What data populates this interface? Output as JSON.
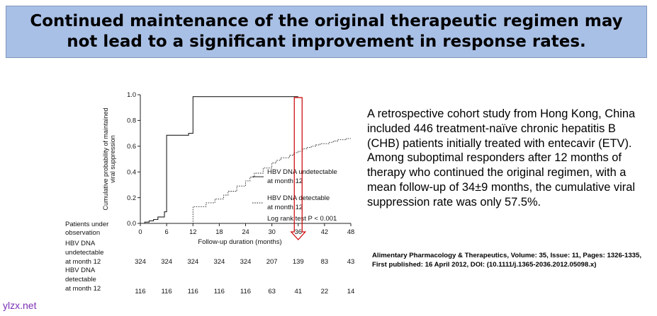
{
  "title": "Continued maintenance of the original therapeutic regimen may not lead to a significant improvement in response rates.",
  "description": "A retrospective cohort study from Hong Kong, China included 446 treatment-naïve chronic hepatitis B (CHB) patients initially treated with entecavir (ETV). Among suboptimal responders after 12 months of therapy who continued the original regimen, with a mean follow-up of 34±9 months, the cumulative viral suppression rate was only 57.5%.",
  "citation": "Alimentary Pharmacology & Therapeutics, Volume: 35, Issue: 11, Pages: 1326-1335, First published: 16 April 2012, DOI: (10.1111/j.1365-2036.2012.05098.x)",
  "watermark": "ylzx.net",
  "colors": {
    "banner": "#a9c0e6",
    "highlight_arrow": "#cc0000",
    "watermark": "#7b2fb5"
  },
  "chart_data": {
    "type": "line",
    "ylabel_lines": [
      "Cumulative probability of maintained",
      "viral suppression"
    ],
    "xlabel": "Follow-up duration (months)",
    "xlim": [
      0,
      48
    ],
    "ylim": [
      0,
      1.0
    ],
    "x_ticks": [
      0,
      6,
      12,
      18,
      24,
      30,
      36,
      42,
      48
    ],
    "y_ticks": [
      "0.0",
      "0.2",
      "0.4",
      "0.6",
      "0.8",
      "1.0"
    ],
    "series": [
      {
        "name": "HBV DNA undetectable at month 12",
        "legend_lines": [
          "HBV DNA undetectable",
          "at month 12"
        ],
        "style": "solid",
        "points": [
          [
            0,
            0
          ],
          [
            1,
            0
          ],
          [
            1,
            0.01
          ],
          [
            2,
            0.01
          ],
          [
            2,
            0.02
          ],
          [
            3,
            0.02
          ],
          [
            3,
            0.03
          ],
          [
            4,
            0.03
          ],
          [
            4,
            0.05
          ],
          [
            5.5,
            0.05
          ],
          [
            5.5,
            0.09
          ],
          [
            6,
            0.09
          ],
          [
            6,
            0.685
          ],
          [
            11,
            0.685
          ],
          [
            11,
            0.7
          ],
          [
            12,
            0.7
          ],
          [
            12,
            0.985
          ],
          [
            36,
            0.985
          ]
        ]
      },
      {
        "name": "HBV DNA detectable at month 12",
        "legend_lines": [
          "HBV DNA detectable",
          "at month 12"
        ],
        "style": "dashed",
        "points": [
          [
            0,
            0
          ],
          [
            12,
            0
          ],
          [
            12,
            0.13
          ],
          [
            15,
            0.13
          ],
          [
            15,
            0.16
          ],
          [
            17,
            0.16
          ],
          [
            17,
            0.19
          ],
          [
            19,
            0.19
          ],
          [
            19,
            0.22
          ],
          [
            20,
            0.22
          ],
          [
            20,
            0.25
          ],
          [
            22,
            0.25
          ],
          [
            22,
            0.29
          ],
          [
            24,
            0.29
          ],
          [
            24,
            0.33
          ],
          [
            25,
            0.33
          ],
          [
            25,
            0.36
          ],
          [
            26,
            0.36
          ],
          [
            26,
            0.39
          ],
          [
            28,
            0.39
          ],
          [
            28,
            0.43
          ],
          [
            30,
            0.43
          ],
          [
            30,
            0.47
          ],
          [
            31,
            0.47
          ],
          [
            31,
            0.49
          ],
          [
            32,
            0.49
          ],
          [
            32,
            0.51
          ],
          [
            34,
            0.51
          ],
          [
            34,
            0.53
          ],
          [
            35,
            0.53
          ],
          [
            35,
            0.55
          ],
          [
            36,
            0.55
          ],
          [
            36,
            0.56
          ],
          [
            37,
            0.56
          ],
          [
            37,
            0.58
          ],
          [
            38,
            0.58
          ],
          [
            38,
            0.59
          ],
          [
            39,
            0.59
          ],
          [
            39,
            0.6
          ],
          [
            40,
            0.6
          ],
          [
            40,
            0.61
          ],
          [
            41,
            0.61
          ],
          [
            41,
            0.62
          ],
          [
            43,
            0.62
          ],
          [
            43,
            0.63
          ],
          [
            44,
            0.63
          ],
          [
            44,
            0.64
          ],
          [
            45,
            0.64
          ],
          [
            45,
            0.65
          ],
          [
            47,
            0.65
          ],
          [
            47,
            0.66
          ],
          [
            48,
            0.66
          ]
        ]
      }
    ],
    "annotation": "Log rank test P < 0.001",
    "risk_table": {
      "header_lines": [
        "Patients under",
        "observation"
      ],
      "rows": [
        {
          "label_lines": [
            "HBV DNA",
            "undetectable",
            "at month 12"
          ],
          "values": [
            324,
            324,
            324,
            324,
            324,
            207,
            139,
            83,
            43
          ]
        },
        {
          "label_lines": [
            "HBV DNA",
            "detectable",
            "at month 12"
          ],
          "values": [
            116,
            116,
            116,
            116,
            116,
            63,
            41,
            22,
            14
          ]
        }
      ]
    },
    "highlight": {
      "x": 36,
      "shape": "down-arrow"
    }
  }
}
